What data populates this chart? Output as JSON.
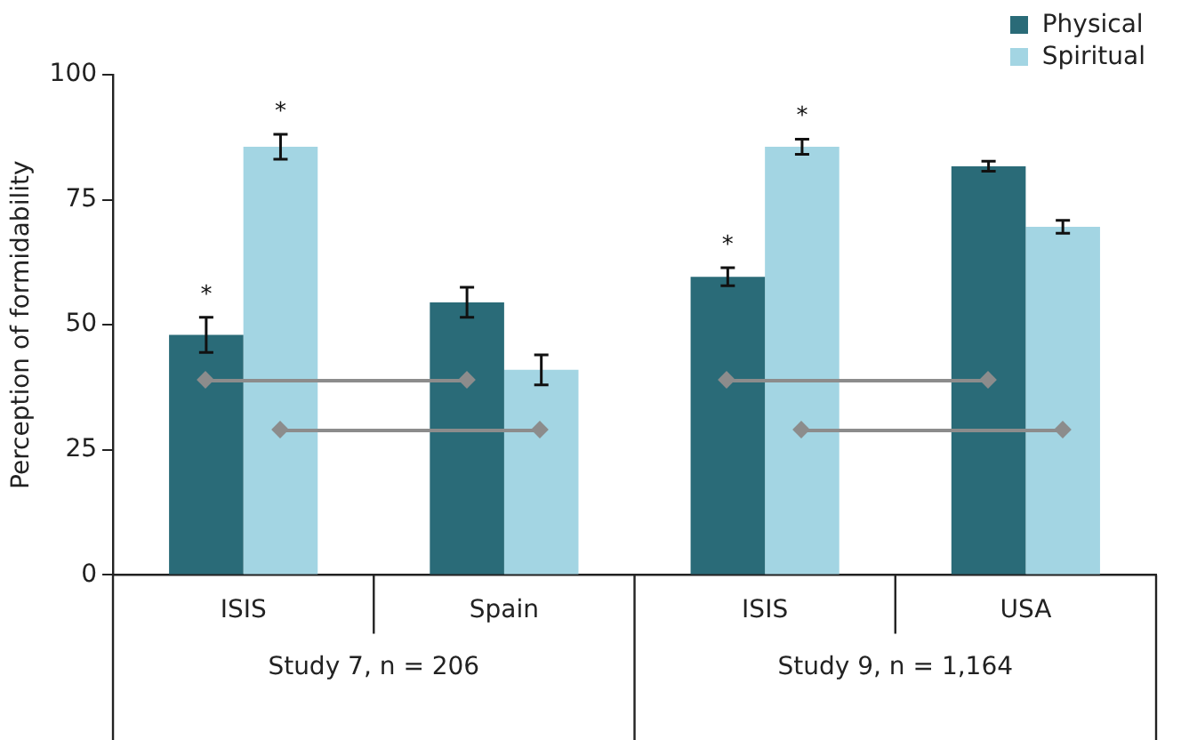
{
  "chart_data": {
    "type": "bar",
    "ylabel": "Perception of formidability",
    "categories": [
      "ISIS",
      "Spain",
      "ISIS",
      "USA"
    ],
    "series": [
      {
        "name": "Physical",
        "color": "#2a6b78",
        "values": [
          48,
          54.5,
          59.6,
          81.7
        ],
        "errors": [
          3.5,
          3,
          1.8,
          1
        ],
        "value_labels": [
          "*",
          null,
          "*",
          null
        ]
      },
      {
        "name": "Spiritual",
        "color": "#a3d5e3",
        "values": [
          85.6,
          41,
          85.6,
          69.6
        ],
        "errors": [
          2.5,
          3,
          1.5,
          1.3
        ],
        "value_labels": [
          "*",
          null,
          "*",
          null
        ]
      }
    ],
    "ylim": [
      0,
      100
    ],
    "yticks": [
      0,
      25,
      50,
      75,
      100
    ],
    "grid": false,
    "legend": "top right",
    "annotations": [
      "Study 7, n = 206",
      "Study 9, n = 1,164"
    ]
  }
}
